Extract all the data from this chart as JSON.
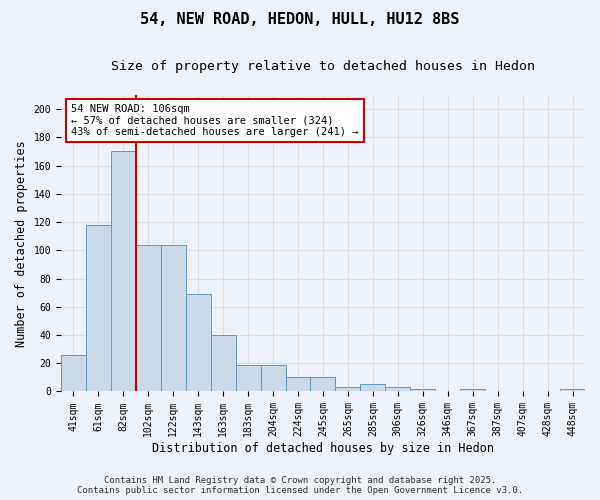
{
  "title": "54, NEW ROAD, HEDON, HULL, HU12 8BS",
  "subtitle": "Size of property relative to detached houses in Hedon",
  "xlabel": "Distribution of detached houses by size in Hedon",
  "ylabel": "Number of detached properties",
  "categories": [
    "41sqm",
    "61sqm",
    "82sqm",
    "102sqm",
    "122sqm",
    "143sqm",
    "163sqm",
    "183sqm",
    "204sqm",
    "224sqm",
    "245sqm",
    "265sqm",
    "285sqm",
    "306sqm",
    "326sqm",
    "346sqm",
    "367sqm",
    "387sqm",
    "407sqm",
    "428sqm",
    "448sqm"
  ],
  "values": [
    26,
    118,
    170,
    104,
    104,
    69,
    40,
    19,
    19,
    10,
    10,
    3,
    5,
    3,
    2,
    0,
    2,
    0,
    0,
    0,
    2
  ],
  "bar_color": "#ccd9e8",
  "bar_edge_color": "#6699bb",
  "red_line_x": 2.5,
  "annotation_title": "54 NEW ROAD: 106sqm",
  "annotation_line2": "← 57% of detached houses are smaller (324)",
  "annotation_line3": "43% of semi-detached houses are larger (241) →",
  "annotation_box_facecolor": "#ffffff",
  "annotation_box_edgecolor": "#cc0000",
  "red_line_color": "#cc0000",
  "ylim": [
    0,
    210
  ],
  "yticks": [
    0,
    20,
    40,
    60,
    80,
    100,
    120,
    140,
    160,
    180,
    200
  ],
  "background_color": "#eef2f8",
  "grid_color": "#d8dde8",
  "title_fontsize": 11,
  "subtitle_fontsize": 9.5,
  "axis_label_fontsize": 8.5,
  "tick_fontsize": 7,
  "footer_fontsize": 6.5,
  "annotation_fontsize": 7.5,
  "footer_line1": "Contains HM Land Registry data © Crown copyright and database right 2025.",
  "footer_line2": "Contains public sector information licensed under the Open Government Licence v3.0."
}
